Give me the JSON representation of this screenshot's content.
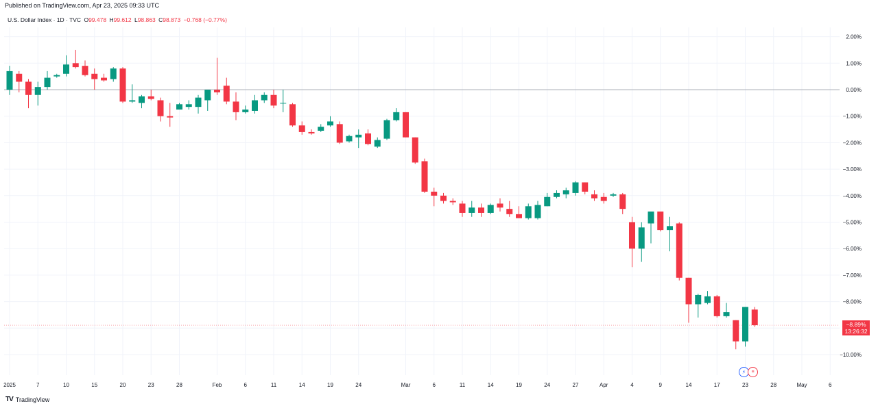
{
  "header": {
    "published": "Published on TradingView.com, Apr 23, 2025 09:33 UTC",
    "symbol": "U.S. Dollar Index · 1D · TVC",
    "open_label": "O",
    "open": "99.478",
    "high_label": "H",
    "high": "99.612",
    "low_label": "L",
    "low": "98.863",
    "close_label": "C",
    "close": "98.873",
    "change": "−0.768 (−0.77%)"
  },
  "price_tag": {
    "value": "−8.89%",
    "countdown": "13:26:32",
    "color": "#f23645"
  },
  "footer": {
    "brand": "TradingView",
    "logo_icon": "tradingview-logo-icon"
  },
  "colors": {
    "up": "#089981",
    "down": "#f23645",
    "zero_line": "#9598a1",
    "grid": "#f0f3fa"
  },
  "chart_data": {
    "type": "candlestick",
    "y_unit": "% change",
    "ylim": [
      -10.5,
      2.4
    ],
    "y_ticks": [
      "2.00%",
      "1.00%",
      "0.00%",
      "−1.00%",
      "−2.00%",
      "−3.00%",
      "−4.00%",
      "−5.00%",
      "−6.00%",
      "−7.00%",
      "−8.00%",
      "−9.00%",
      "−10.00%"
    ],
    "y_tick_values": [
      2,
      1,
      0,
      -1,
      -2,
      -3,
      -4,
      -5,
      -6,
      -7,
      -8,
      -9,
      -10
    ],
    "x_ticks": [
      {
        "label": "2025",
        "idx": 0
      },
      {
        "label": "7",
        "idx": 3
      },
      {
        "label": "10",
        "idx": 6
      },
      {
        "label": "15",
        "idx": 9
      },
      {
        "label": "20",
        "idx": 12
      },
      {
        "label": "23",
        "idx": 15
      },
      {
        "label": "28",
        "idx": 18
      },
      {
        "label": "Feb",
        "idx": 22
      },
      {
        "label": "6",
        "idx": 25
      },
      {
        "label": "11",
        "idx": 28
      },
      {
        "label": "14",
        "idx": 31
      },
      {
        "label": "19",
        "idx": 34
      },
      {
        "label": "24",
        "idx": 37
      },
      {
        "label": "Mar",
        "idx": 42
      },
      {
        "label": "6",
        "idx": 45
      },
      {
        "label": "11",
        "idx": 48
      },
      {
        "label": "14",
        "idx": 51
      },
      {
        "label": "19",
        "idx": 54
      },
      {
        "label": "24",
        "idx": 57
      },
      {
        "label": "27",
        "idx": 60
      },
      {
        "label": "Apr",
        "idx": 63
      },
      {
        "label": "4",
        "idx": 66
      },
      {
        "label": "9",
        "idx": 69
      },
      {
        "label": "14",
        "idx": 72
      },
      {
        "label": "17",
        "idx": 75
      },
      {
        "label": "23",
        "idx": 78
      },
      {
        "label": "28",
        "idx": 81
      },
      {
        "label": "May",
        "idx": 84
      },
      {
        "label": "6",
        "idx": 87
      }
    ],
    "candles": [
      {
        "o": 0.0,
        "h": 0.9,
        "l": -0.2,
        "c": 0.7
      },
      {
        "o": 0.6,
        "h": 0.7,
        "l": -0.1,
        "c": 0.3
      },
      {
        "o": 0.3,
        "h": 0.4,
        "l": -0.7,
        "c": -0.2
      },
      {
        "o": -0.2,
        "h": 0.3,
        "l": -0.6,
        "c": 0.1
      },
      {
        "o": 0.1,
        "h": 0.7,
        "l": 0.0,
        "c": 0.45
      },
      {
        "o": 0.5,
        "h": 0.6,
        "l": 0.45,
        "c": 0.55
      },
      {
        "o": 0.6,
        "h": 1.3,
        "l": 0.5,
        "c": 0.95
      },
      {
        "o": 1.0,
        "h": 1.5,
        "l": 0.8,
        "c": 0.85
      },
      {
        "o": 0.9,
        "h": 1.1,
        "l": 0.5,
        "c": 0.55
      },
      {
        "o": 0.6,
        "h": 0.8,
        "l": 0.0,
        "c": 0.4
      },
      {
        "o": 0.45,
        "h": 0.6,
        "l": 0.3,
        "c": 0.35
      },
      {
        "o": 0.4,
        "h": 0.85,
        "l": 0.3,
        "c": 0.8
      },
      {
        "o": 0.8,
        "h": 0.85,
        "l": -0.5,
        "c": -0.45
      },
      {
        "o": -0.45,
        "h": 0.2,
        "l": -0.5,
        "c": -0.4
      },
      {
        "o": -0.5,
        "h": -0.2,
        "l": -0.7,
        "c": -0.25
      },
      {
        "o": -0.25,
        "h": 0.0,
        "l": -0.4,
        "c": -0.35
      },
      {
        "o": -0.4,
        "h": -0.3,
        "l": -1.2,
        "c": -1.0
      },
      {
        "o": -1.0,
        "h": -0.5,
        "l": -1.4,
        "c": -1.05
      },
      {
        "o": -0.75,
        "h": -0.5,
        "l": -0.75,
        "c": -0.55
      },
      {
        "o": -0.65,
        "h": -0.4,
        "l": -0.75,
        "c": -0.55
      },
      {
        "o": -0.65,
        "h": -0.2,
        "l": -0.9,
        "c": -0.3
      },
      {
        "o": -0.4,
        "h": 0.0,
        "l": -0.8,
        "c": 0.0
      },
      {
        "o": 0.0,
        "h": 1.2,
        "l": -0.2,
        "c": -0.1
      },
      {
        "o": 0.15,
        "h": 0.45,
        "l": -0.55,
        "c": -0.45
      },
      {
        "o": -0.45,
        "h": -0.1,
        "l": -1.15,
        "c": -0.85
      },
      {
        "o": -0.85,
        "h": -0.6,
        "l": -0.9,
        "c": -0.75
      },
      {
        "o": -0.8,
        "h": -0.2,
        "l": -0.9,
        "c": -0.4
      },
      {
        "o": -0.4,
        "h": -0.1,
        "l": -0.5,
        "c": -0.2
      },
      {
        "o": -0.2,
        "h": 0.0,
        "l": -0.7,
        "c": -0.6
      },
      {
        "o": -0.5,
        "h": 0.0,
        "l": -0.85,
        "c": -0.5
      },
      {
        "o": -0.55,
        "h": -0.5,
        "l": -1.4,
        "c": -1.35
      },
      {
        "o": -1.35,
        "h": -1.2,
        "l": -1.7,
        "c": -1.6
      },
      {
        "o": -1.6,
        "h": -1.5,
        "l": -1.7,
        "c": -1.65
      },
      {
        "o": -1.55,
        "h": -1.3,
        "l": -1.6,
        "c": -1.4
      },
      {
        "o": -1.35,
        "h": -1.0,
        "l": -1.4,
        "c": -1.2
      },
      {
        "o": -1.3,
        "h": -1.2,
        "l": -2.05,
        "c": -2.0
      },
      {
        "o": -1.95,
        "h": -1.7,
        "l": -2.0,
        "c": -1.75
      },
      {
        "o": -1.8,
        "h": -1.5,
        "l": -2.2,
        "c": -1.7
      },
      {
        "o": -1.65,
        "h": -1.5,
        "l": -2.1,
        "c": -2.05
      },
      {
        "o": -2.15,
        "h": -1.8,
        "l": -2.2,
        "c": -1.9
      },
      {
        "o": -1.85,
        "h": -1.1,
        "l": -1.9,
        "c": -1.15
      },
      {
        "o": -1.15,
        "h": -0.7,
        "l": -1.2,
        "c": -0.85
      },
      {
        "o": -0.85,
        "h": -0.85,
        "l": -1.8,
        "c": -1.8
      },
      {
        "o": -1.8,
        "h": -1.8,
        "l": -2.8,
        "c": -2.75
      },
      {
        "o": -2.7,
        "h": -2.6,
        "l": -3.9,
        "c": -3.85
      },
      {
        "o": -3.85,
        "h": -3.7,
        "l": -4.4,
        "c": -4.0
      },
      {
        "o": -4.0,
        "h": -3.9,
        "l": -4.3,
        "c": -4.2
      },
      {
        "o": -4.2,
        "h": -4.1,
        "l": -4.35,
        "c": -4.25
      },
      {
        "o": -4.3,
        "h": -4.2,
        "l": -4.8,
        "c": -4.65
      },
      {
        "o": -4.65,
        "h": -4.2,
        "l": -4.8,
        "c": -4.45
      },
      {
        "o": -4.45,
        "h": -4.3,
        "l": -4.8,
        "c": -4.65
      },
      {
        "o": -4.65,
        "h": -4.3,
        "l": -4.7,
        "c": -4.35
      },
      {
        "o": -4.3,
        "h": -4.1,
        "l": -4.6,
        "c": -4.45
      },
      {
        "o": -4.5,
        "h": -4.2,
        "l": -4.8,
        "c": -4.7
      },
      {
        "o": -4.7,
        "h": -4.4,
        "l": -4.85,
        "c": -4.85
      },
      {
        "o": -4.85,
        "h": -4.3,
        "l": -4.9,
        "c": -4.4
      },
      {
        "o": -4.85,
        "h": -4.2,
        "l": -4.9,
        "c": -4.35
      },
      {
        "o": -4.4,
        "h": -3.9,
        "l": -4.4,
        "c": -4.05
      },
      {
        "o": -4.05,
        "h": -3.8,
        "l": -4.1,
        "c": -3.9
      },
      {
        "o": -3.95,
        "h": -3.7,
        "l": -4.1,
        "c": -3.8
      },
      {
        "o": -3.9,
        "h": -3.45,
        "l": -4.0,
        "c": -3.5
      },
      {
        "o": -3.5,
        "h": -3.5,
        "l": -3.95,
        "c": -3.85
      },
      {
        "o": -3.95,
        "h": -3.8,
        "l": -4.2,
        "c": -4.1
      },
      {
        "o": -4.05,
        "h": -3.9,
        "l": -4.3,
        "c": -4.2
      },
      {
        "o": -4.0,
        "h": -3.9,
        "l": -4.05,
        "c": -3.95
      },
      {
        "o": -3.95,
        "h": -3.9,
        "l": -4.7,
        "c": -4.5
      },
      {
        "o": -5.0,
        "h": -4.8,
        "l": -6.7,
        "c": -6.0
      },
      {
        "o": -6.0,
        "h": -5.0,
        "l": -6.5,
        "c": -5.2
      },
      {
        "o": -5.05,
        "h": -4.6,
        "l": -5.8,
        "c": -4.6
      },
      {
        "o": -4.6,
        "h": -4.6,
        "l": -5.35,
        "c": -5.3
      },
      {
        "o": -5.3,
        "h": -4.8,
        "l": -6.1,
        "c": -5.15
      },
      {
        "o": -5.05,
        "h": -5.0,
        "l": -7.2,
        "c": -7.1
      },
      {
        "o": -7.1,
        "h": -7.1,
        "l": -8.8,
        "c": -8.1
      },
      {
        "o": -8.1,
        "h": -7.7,
        "l": -8.6,
        "c": -7.75
      },
      {
        "o": -8.05,
        "h": -7.6,
        "l": -8.1,
        "c": -7.8
      },
      {
        "o": -7.8,
        "h": -7.75,
        "l": -8.6,
        "c": -8.55
      },
      {
        "o": -8.55,
        "h": -8.05,
        "l": -8.6,
        "c": -8.4
      },
      {
        "o": -8.7,
        "h": -8.7,
        "l": -9.8,
        "c": -9.5
      },
      {
        "o": -9.5,
        "h": -8.2,
        "l": -9.7,
        "c": -8.2
      },
      {
        "o": -8.3,
        "h": -8.2,
        "l": -8.95,
        "c": -8.89
      }
    ]
  }
}
